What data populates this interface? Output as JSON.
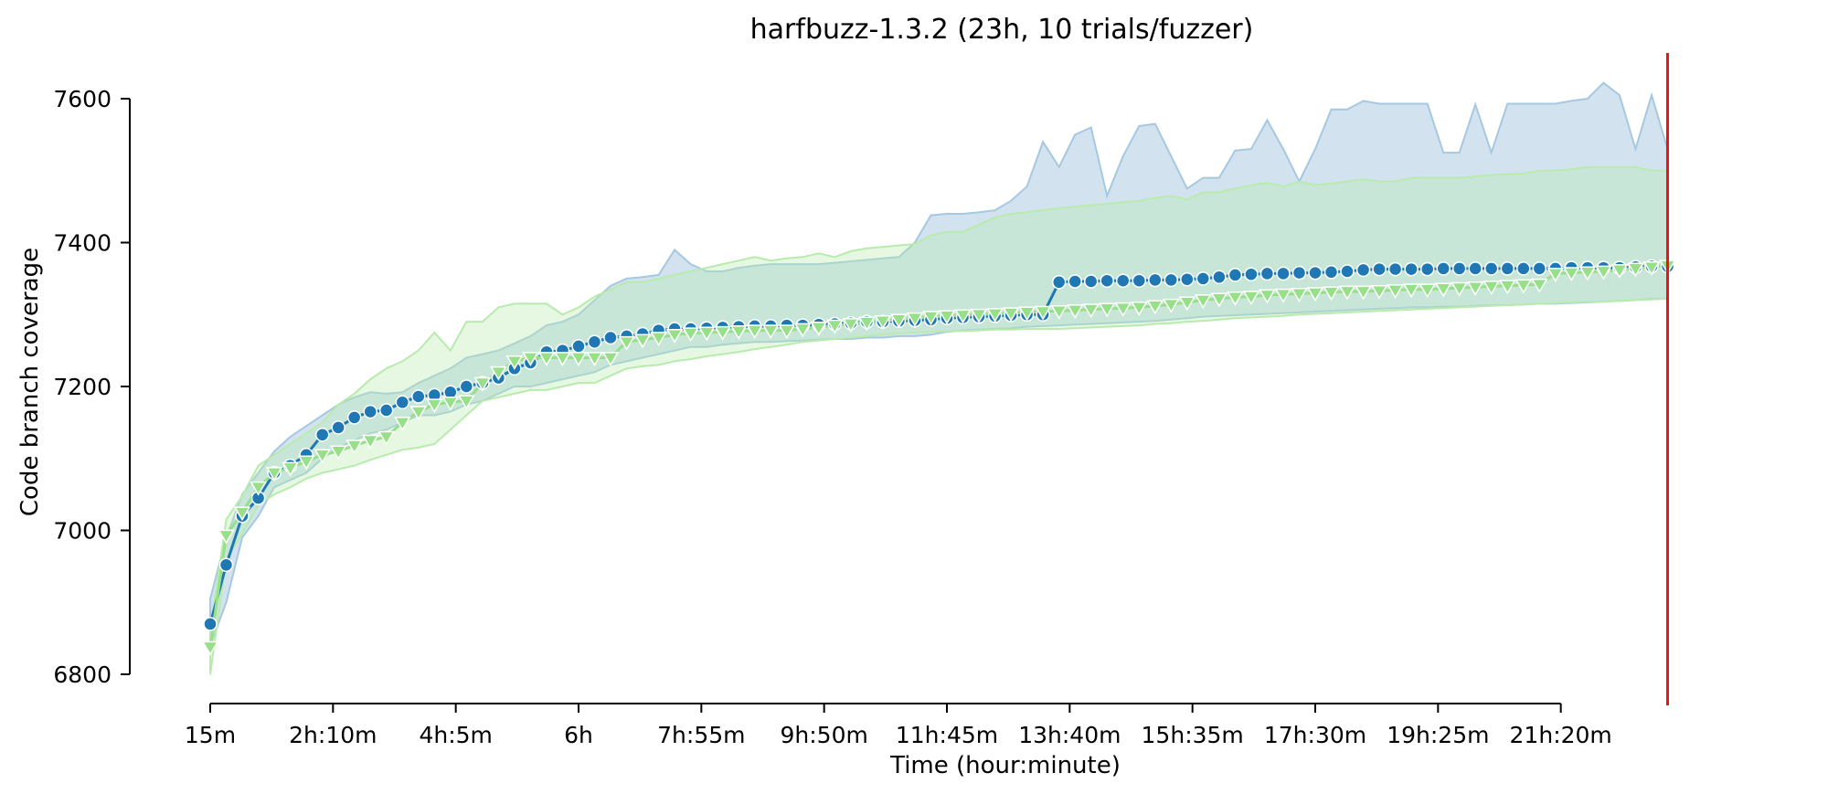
{
  "chart_data": {
    "type": "line",
    "title": "harfbuzz-1.3.2 (23h, 10 trials/fuzzer)",
    "xlabel": "Time (hour:minute)",
    "ylabel": "Code branch coverage",
    "xlim": [
      15,
      1395
    ],
    "ylim": [
      6800,
      7600
    ],
    "xticks": [
      {
        "v": 15,
        "label": "15m"
      },
      {
        "v": 130,
        "label": "2h:10m"
      },
      {
        "v": 245,
        "label": "4h:5m"
      },
      {
        "v": 360,
        "label": "6h"
      },
      {
        "v": 475,
        "label": "7h:55m"
      },
      {
        "v": 590,
        "label": "9h:50m"
      },
      {
        "v": 705,
        "label": "11h:45m"
      },
      {
        "v": 820,
        "label": "13h:40m"
      },
      {
        "v": 935,
        "label": "15h:35m"
      },
      {
        "v": 1050,
        "label": "17h:30m"
      },
      {
        "v": 1165,
        "label": "19h:25m"
      },
      {
        "v": 1280,
        "label": "21h:20m"
      }
    ],
    "yticks": [
      {
        "v": 6800,
        "label": "6800"
      },
      {
        "v": 7000,
        "label": "7000"
      },
      {
        "v": 7200,
        "label": "7200"
      },
      {
        "v": 7400,
        "label": "7400"
      },
      {
        "v": 7600,
        "label": "7600"
      }
    ],
    "grid": false,
    "legend": "none",
    "vline": {
      "x": 1380,
      "color": "#ee1111"
    },
    "series": [
      {
        "color": "#1f77b4",
        "band_color": "#a6c8e0",
        "marker": "circle",
        "x": [
          15,
          30,
          45,
          60,
          75,
          90,
          105,
          120,
          135,
          150,
          165,
          180,
          195,
          210,
          225,
          240,
          255,
          270,
          285,
          300,
          315,
          330,
          345,
          360,
          375,
          390,
          405,
          420,
          435,
          450,
          465,
          480,
          495,
          510,
          525,
          540,
          555,
          570,
          585,
          600,
          615,
          630,
          645,
          660,
          675,
          690,
          705,
          720,
          735,
          750,
          765,
          780,
          795,
          810,
          825,
          840,
          855,
          870,
          885,
          900,
          915,
          930,
          945,
          960,
          975,
          990,
          1005,
          1020,
          1035,
          1050,
          1065,
          1080,
          1095,
          1110,
          1125,
          1140,
          1155,
          1170,
          1185,
          1200,
          1215,
          1230,
          1245,
          1260,
          1275,
          1290,
          1305,
          1320,
          1335,
          1350,
          1365,
          1380
        ],
        "values": [
          6870,
          6952,
          7020,
          7045,
          7080,
          7090,
          7105,
          7133,
          7143,
          7157,
          7165,
          7167,
          7178,
          7186,
          7188,
          7192,
          7200,
          7205,
          7212,
          7225,
          7233,
          7248,
          7250,
          7256,
          7262,
          7268,
          7270,
          7273,
          7278,
          7280,
          7280,
          7281,
          7282,
          7283,
          7284,
          7284,
          7285,
          7285,
          7286,
          7287,
          7288,
          7290,
          7290,
          7291,
          7292,
          7293,
          7295,
          7296,
          7297,
          7298,
          7299,
          7300,
          7300,
          7345,
          7346,
          7346,
          7347,
          7347,
          7347,
          7348,
          7348,
          7349,
          7350,
          7352,
          7355,
          7356,
          7357,
          7357,
          7358,
          7358,
          7359,
          7360,
          7362,
          7363,
          7363,
          7363,
          7363,
          7364,
          7364,
          7364,
          7364,
          7364,
          7364,
          7364,
          7364,
          7365,
          7365,
          7365,
          7365,
          7366,
          7367,
          7367
        ],
        "lower": [
          6840,
          6900,
          6990,
          7020,
          7060,
          7070,
          7080,
          7100,
          7115,
          7125,
          7135,
          7140,
          7150,
          7160,
          7160,
          7165,
          7175,
          7180,
          7190,
          7200,
          7200,
          7205,
          7210,
          7215,
          7220,
          7230,
          7235,
          7240,
          7245,
          7250,
          7255,
          7255,
          7258,
          7260,
          7262,
          7262,
          7263,
          7264,
          7265,
          7266,
          7266,
          7268,
          7268,
          7270,
          7270,
          7272,
          7276,
          7278,
          7279,
          7280,
          7281,
          7283,
          7284,
          7285,
          7286,
          7287,
          7288,
          7289,
          7290,
          7291,
          7293,
          7295,
          7297,
          7298,
          7299,
          7300,
          7301,
          7302,
          7303,
          7304,
          7305,
          7306,
          7307,
          7308,
          7309,
          7310,
          7310,
          7311,
          7311,
          7312,
          7313,
          7313,
          7314,
          7315,
          7315,
          7316,
          7317,
          7318,
          7319,
          7320,
          7322,
          7322
        ],
        "upper": [
          6905,
          6990,
          7050,
          7080,
          7110,
          7130,
          7145,
          7160,
          7175,
          7185,
          7192,
          7190,
          7192,
          7205,
          7215,
          7225,
          7240,
          7245,
          7250,
          7260,
          7270,
          7285,
          7290,
          7300,
          7320,
          7340,
          7350,
          7352,
          7355,
          7390,
          7370,
          7360,
          7360,
          7365,
          7368,
          7370,
          7370,
          7370,
          7370,
          7372,
          7374,
          7376,
          7378,
          7380,
          7400,
          7438,
          7440,
          7440,
          7442,
          7445,
          7458,
          7478,
          7540,
          7505,
          7550,
          7560,
          7465,
          7520,
          7562,
          7565,
          7520,
          7475,
          7490,
          7490,
          7528,
          7530,
          7570,
          7530,
          7485,
          7530,
          7585,
          7585,
          7597,
          7593,
          7593,
          7593,
          7593,
          7525,
          7525,
          7592,
          7525,
          7593,
          7593,
          7593,
          7593,
          7597,
          7600,
          7622,
          7605,
          7530,
          7605,
          7530
        ]
      },
      {
        "color": "#98df8a",
        "band_color": "#b8ebad",
        "marker": "triangle-down",
        "x": [
          15,
          30,
          45,
          60,
          75,
          90,
          105,
          120,
          135,
          150,
          165,
          180,
          195,
          210,
          225,
          240,
          255,
          270,
          285,
          300,
          315,
          330,
          345,
          360,
          375,
          390,
          405,
          420,
          435,
          450,
          465,
          480,
          495,
          510,
          525,
          540,
          555,
          570,
          585,
          600,
          615,
          630,
          645,
          660,
          675,
          690,
          705,
          720,
          735,
          750,
          765,
          780,
          795,
          810,
          825,
          840,
          855,
          870,
          885,
          900,
          915,
          930,
          945,
          960,
          975,
          990,
          1005,
          1020,
          1035,
          1050,
          1065,
          1080,
          1095,
          1110,
          1125,
          1140,
          1155,
          1170,
          1185,
          1200,
          1215,
          1230,
          1245,
          1260,
          1275,
          1290,
          1305,
          1320,
          1335,
          1350,
          1365,
          1380
        ],
        "values": [
          6838,
          6993,
          7025,
          7060,
          7080,
          7087,
          7096,
          7105,
          7110,
          7118,
          7125,
          7130,
          7150,
          7165,
          7175,
          7178,
          7180,
          7205,
          7220,
          7235,
          7240,
          7240,
          7240,
          7240,
          7240,
          7240,
          7262,
          7265,
          7268,
          7272,
          7274,
          7275,
          7276,
          7277,
          7278,
          7278,
          7278,
          7280,
          7282,
          7285,
          7287,
          7289,
          7291,
          7293,
          7295,
          7297,
          7298,
          7299,
          7300,
          7301,
          7302,
          7303,
          7304,
          7305,
          7306,
          7307,
          7308,
          7309,
          7310,
          7312,
          7314,
          7317,
          7320,
          7322,
          7324,
          7325,
          7327,
          7328,
          7329,
          7330,
          7331,
          7332,
          7332,
          7333,
          7334,
          7335,
          7335,
          7336,
          7337,
          7338,
          7339,
          7340,
          7341,
          7342,
          7357,
          7358,
          7359,
          7360,
          7362,
          7364,
          7366,
          7368
        ],
        "lower": [
          6800,
          6960,
          6995,
          7035,
          7050,
          7060,
          7072,
          7080,
          7085,
          7090,
          7098,
          7105,
          7112,
          7115,
          7120,
          7140,
          7160,
          7180,
          7185,
          7190,
          7195,
          7195,
          7200,
          7205,
          7205,
          7215,
          7225,
          7228,
          7230,
          7235,
          7238,
          7242,
          7245,
          7248,
          7252,
          7255,
          7258,
          7262,
          7264,
          7266,
          7268,
          7270,
          7272,
          7274,
          7275,
          7276,
          7277,
          7277,
          7278,
          7279,
          7279,
          7280,
          7280,
          7280,
          7281,
          7282,
          7283,
          7284,
          7285,
          7287,
          7288,
          7290,
          7291,
          7293,
          7295,
          7296,
          7297,
          7298,
          7300,
          7301,
          7302,
          7303,
          7304,
          7305,
          7306,
          7307,
          7308,
          7309,
          7310,
          7311,
          7312,
          7313,
          7314,
          7315,
          7316,
          7317,
          7318,
          7318,
          7319,
          7320,
          7321,
          7322
        ],
        "upper": [
          6860,
          7015,
          7048,
          7090,
          7105,
          7120,
          7135,
          7150,
          7175,
          7190,
          7210,
          7225,
          7235,
          7250,
          7275,
          7250,
          7290,
          7290,
          7310,
          7315,
          7315,
          7315,
          7300,
          7310,
          7325,
          7335,
          7345,
          7345,
          7350,
          7355,
          7360,
          7365,
          7370,
          7375,
          7380,
          7375,
          7378,
          7380,
          7385,
          7380,
          7388,
          7392,
          7394,
          7396,
          7398,
          7410,
          7415,
          7415,
          7425,
          7435,
          7440,
          7442,
          7445,
          7448,
          7450,
          7452,
          7454,
          7456,
          7458,
          7462,
          7465,
          7460,
          7470,
          7470,
          7475,
          7480,
          7483,
          7478,
          7485,
          7480,
          7482,
          7485,
          7488,
          7485,
          7485,
          7490,
          7490,
          7490,
          7490,
          7492,
          7494,
          7495,
          7496,
          7500,
          7500,
          7502,
          7505,
          7505,
          7505,
          7505,
          7500,
          7500
        ]
      }
    ]
  }
}
